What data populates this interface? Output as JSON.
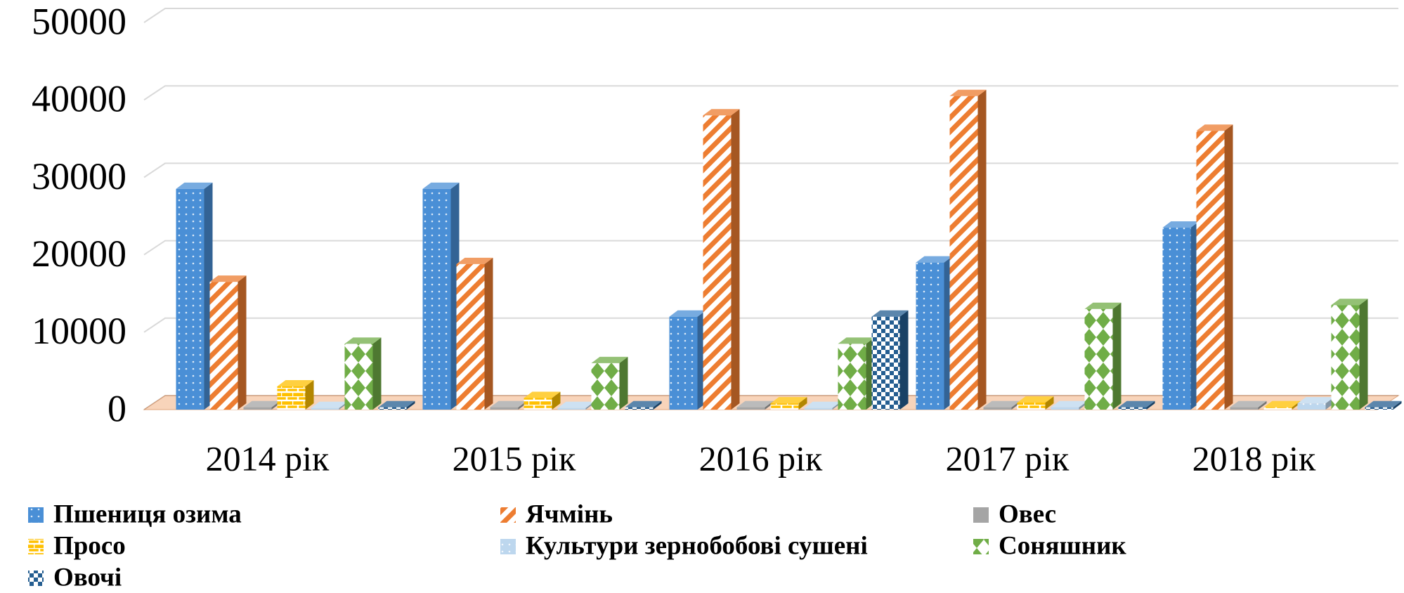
{
  "chart_data": {
    "type": "bar3d",
    "categories": [
      "2014 рік",
      "2015 рік",
      "2016 рік",
      "2017 рік",
      "2018 рік"
    ],
    "series": [
      {
        "name": "Пшениця озима",
        "color": "#4a8fd6",
        "pattern": "dots",
        "values": [
          28500,
          28500,
          12000,
          19000,
          23500
        ]
      },
      {
        "name": "Ячмінь",
        "color": "#ed7d31",
        "pattern": "stripes",
        "values": [
          16500,
          18800,
          38000,
          40500,
          36000
        ]
      },
      {
        "name": "Овес",
        "color": "#a5a5a5",
        "pattern": "none",
        "values": [
          300,
          300,
          300,
          300,
          300
        ]
      },
      {
        "name": "Просо",
        "color": "#ffc000",
        "pattern": "bricks",
        "values": [
          3000,
          1500,
          800,
          900,
          300
        ]
      },
      {
        "name": "Культури зернобобові сушені",
        "color": "#bdd7ee",
        "pattern": "dots",
        "values": [
          200,
          200,
          200,
          300,
          800
        ]
      },
      {
        "name": "Соняшник",
        "color": "#70ad47",
        "pattern": "diamonds",
        "values": [
          8500,
          6000,
          8500,
          13000,
          13500
        ]
      },
      {
        "name": "Овочі",
        "color": "#255e91",
        "pattern": "checker",
        "values": [
          300,
          300,
          12000,
          300,
          300
        ]
      }
    ],
    "ylim": [
      0,
      50000
    ],
    "yticks": [
      0,
      10000,
      20000,
      30000,
      40000,
      50000
    ],
    "grid": true
  }
}
